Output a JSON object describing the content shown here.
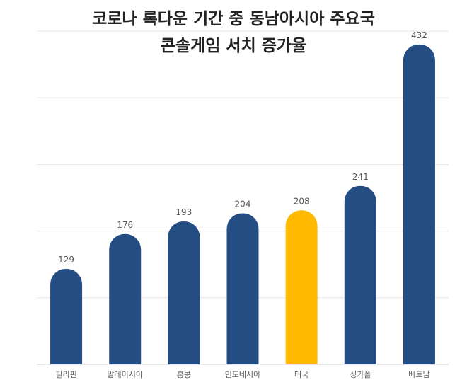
{
  "chart_data": {
    "type": "bar",
    "title_line1": "코로나 록다운 기간 중 동남아시아 주요국",
    "title_line2": "콘솔게임 서치 증가율",
    "categories": [
      "필리핀",
      "말레이시아",
      "홍콩",
      "인도네시아",
      "태국",
      "싱가폴",
      "베트남"
    ],
    "values": [
      129,
      176,
      193,
      204,
      208,
      241,
      432
    ],
    "ylim": [
      0,
      450
    ],
    "grid": true,
    "colors": {
      "default": "#244d84",
      "highlight": "#ffb900",
      "highlight_index": 4
    }
  }
}
